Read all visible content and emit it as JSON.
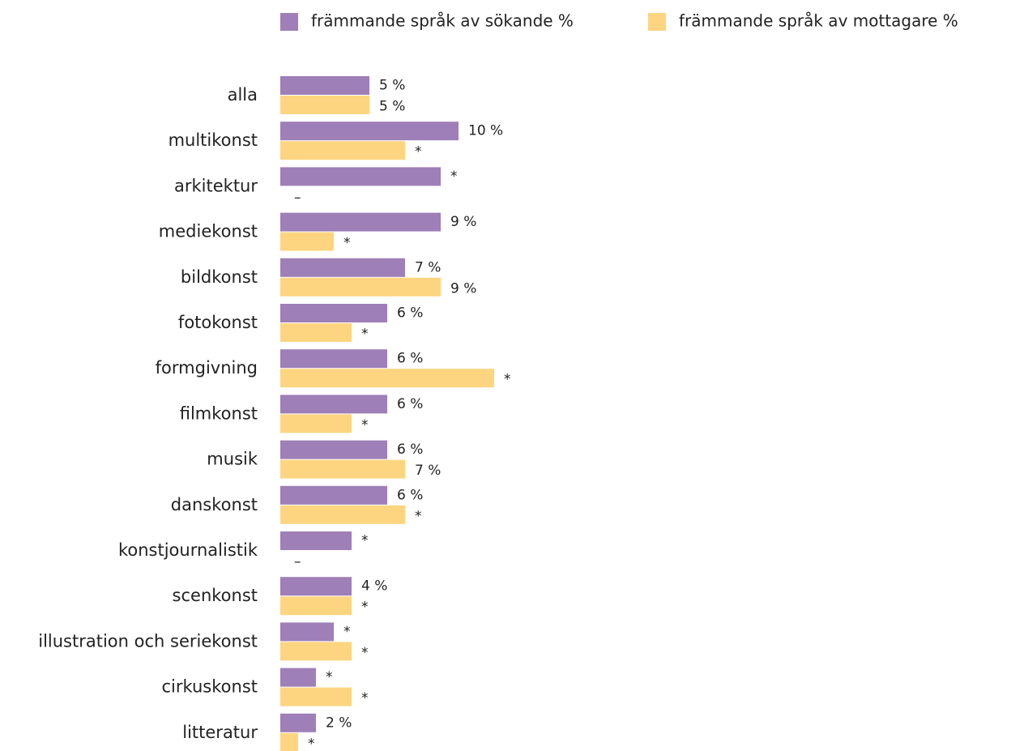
{
  "chart_data": {
    "type": "bar",
    "orientation": "horizontal",
    "categories": [
      "alla",
      "multikonst",
      "arkitektur",
      "mediekonst",
      "bildkonst",
      "fotokonst",
      "formgivning",
      "filmkonst",
      "musik",
      "danskonst",
      "konstjournalistik",
      "scenkonst",
      "illustration och seriekonst",
      "cirkuskonst",
      "litteratur"
    ],
    "series": [
      {
        "name": "främmande språk av sökande %",
        "color": "#9e7fb8",
        "values": [
          5,
          10,
          9,
          9,
          7,
          6,
          6,
          6,
          6,
          6,
          4,
          4,
          3,
          2,
          2
        ],
        "value_labels": [
          "5 %",
          "10 %",
          "*",
          "9 %",
          "7 %",
          "6 %",
          "6 %",
          "6 %",
          "6 %",
          "6 %",
          "*",
          "4 %",
          "*",
          "*",
          "2 %"
        ]
      },
      {
        "name": "främmande språk av mottagare %",
        "color": "#fdd580",
        "values": [
          5,
          7,
          null,
          3,
          9,
          4,
          12,
          4,
          7,
          7,
          null,
          4,
          4,
          4,
          1
        ],
        "value_labels": [
          "5 %",
          "*",
          "–",
          "*",
          "9 %",
          "*",
          "*",
          "*",
          "7 %",
          "*",
          "–",
          "*",
          "*",
          "*",
          "*"
        ]
      }
    ]
  }
}
